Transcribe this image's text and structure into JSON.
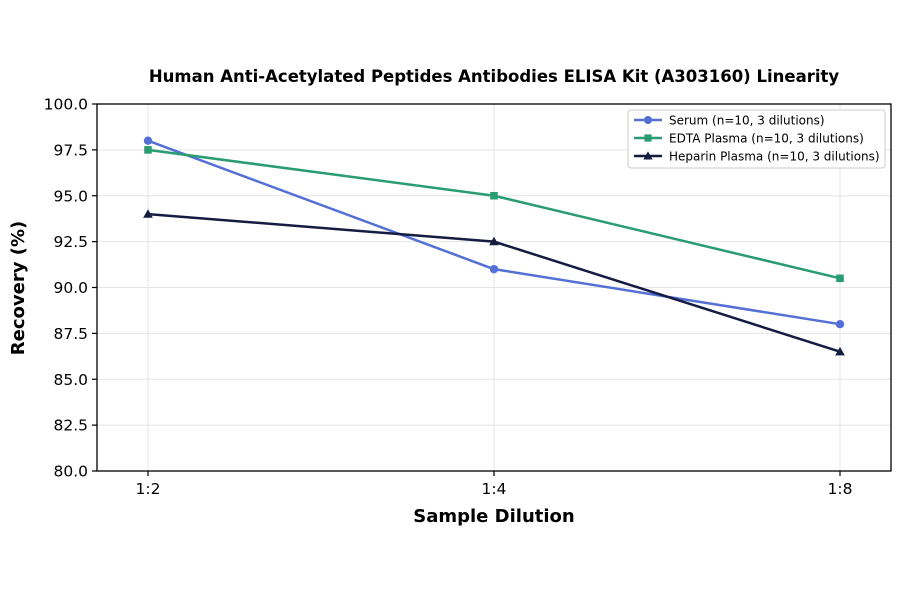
{
  "chart_data": {
    "type": "line",
    "title": "Human Anti-Acetylated Peptides Antibodies ELISA Kit (A303160) Linearity",
    "xlabel": "Sample Dilution",
    "ylabel": "Recovery (%)",
    "categories": [
      "1:2",
      "1:4",
      "1:8"
    ],
    "ylim": [
      80.0,
      100.0
    ],
    "yticks": [
      "80.0",
      "82.5",
      "85.0",
      "87.5",
      "90.0",
      "92.5",
      "95.0",
      "97.5",
      "100.0"
    ],
    "grid": true,
    "legend_position": "top-right",
    "series": [
      {
        "name": "Serum (n=10, 3 dilutions)",
        "values": [
          98.0,
          91.0,
          88.0
        ],
        "color": "#5470d6",
        "marker": "circle"
      },
      {
        "name": "EDTA Plasma (n=10, 3 dilutions)",
        "values": [
          97.5,
          95.0,
          90.5
        ],
        "color": "#2a9c72",
        "marker": "square"
      },
      {
        "name": "Heparin Plasma (n=10, 3 dilutions)",
        "values": [
          94.0,
          92.5,
          86.5
        ],
        "color": "#141c42",
        "marker": "triangle"
      }
    ]
  }
}
